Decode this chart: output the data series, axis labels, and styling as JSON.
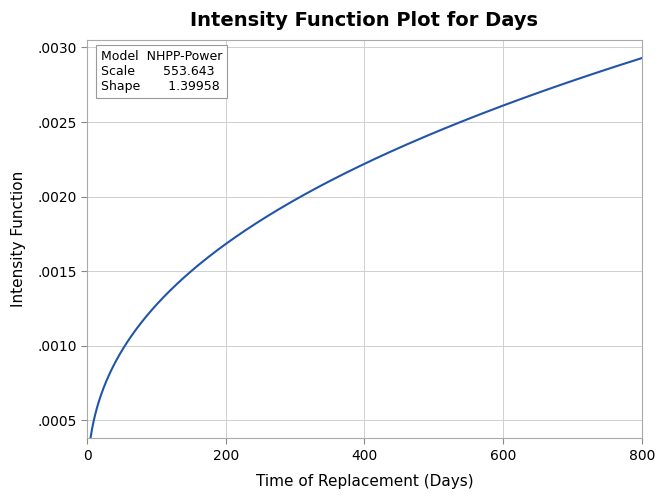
{
  "title": "Intensity Function Plot for Days",
  "xlabel": "Time of Replacement (Days)",
  "ylabel": "Intensity Function",
  "model": "NHPP-Power",
  "scale": 553.643,
  "shape": 1.39958,
  "x_min": 0,
  "x_max": 800,
  "y_min": 0.00038,
  "y_max": 0.00305,
  "line_color": "#2255aa",
  "background_color": "#ffffff",
  "grid_color": "#d0d0d0",
  "yticks": [
    0.0005,
    0.001,
    0.0015,
    0.002,
    0.0025,
    0.003
  ],
  "xticks": [
    0,
    200,
    400,
    600,
    800
  ],
  "title_fontsize": 14,
  "label_fontsize": 11,
  "tick_fontsize": 10
}
